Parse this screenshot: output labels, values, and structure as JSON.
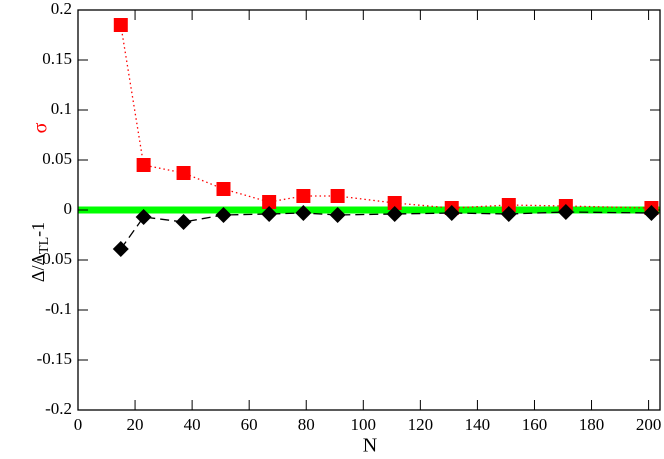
{
  "chart_data": {
    "type": "scatter",
    "xlabel": "N",
    "ylabel_sigma": "σ",
    "ylabel_delta": {
      "main": "Δ/Δ",
      "sub": "TL",
      "tail": "-1"
    },
    "x": [
      15,
      23,
      37,
      51,
      67,
      79,
      91,
      111,
      131,
      151,
      171,
      201
    ],
    "series": [
      {
        "color": "#ff0000",
        "marker": "square",
        "line": "dotted",
        "values": [
          0.185,
          0.045,
          0.037,
          0.021,
          0.008,
          0.014,
          0.014,
          0.007,
          0.002,
          0.005,
          0.004,
          0.002
        ]
      },
      {
        "color": "#000000",
        "marker": "diamond",
        "line": "dashed",
        "values": [
          -0.039,
          -0.007,
          -0.012,
          -0.005,
          -0.004,
          -0.003,
          -0.005,
          -0.004,
          -0.003,
          -0.004,
          -0.002,
          -0.003
        ]
      }
    ],
    "reference_line": {
      "value": 0,
      "color": "#00ff00"
    },
    "xlim": [
      0,
      204
    ],
    "xticks": [
      0,
      20,
      40,
      60,
      80,
      100,
      120,
      140,
      160,
      180,
      200
    ],
    "ylim": [
      -0.2,
      0.2
    ],
    "yticks": [
      -0.2,
      -0.15,
      -0.1,
      -0.05,
      0,
      0.05,
      0.1,
      0.15,
      0.2
    ]
  }
}
